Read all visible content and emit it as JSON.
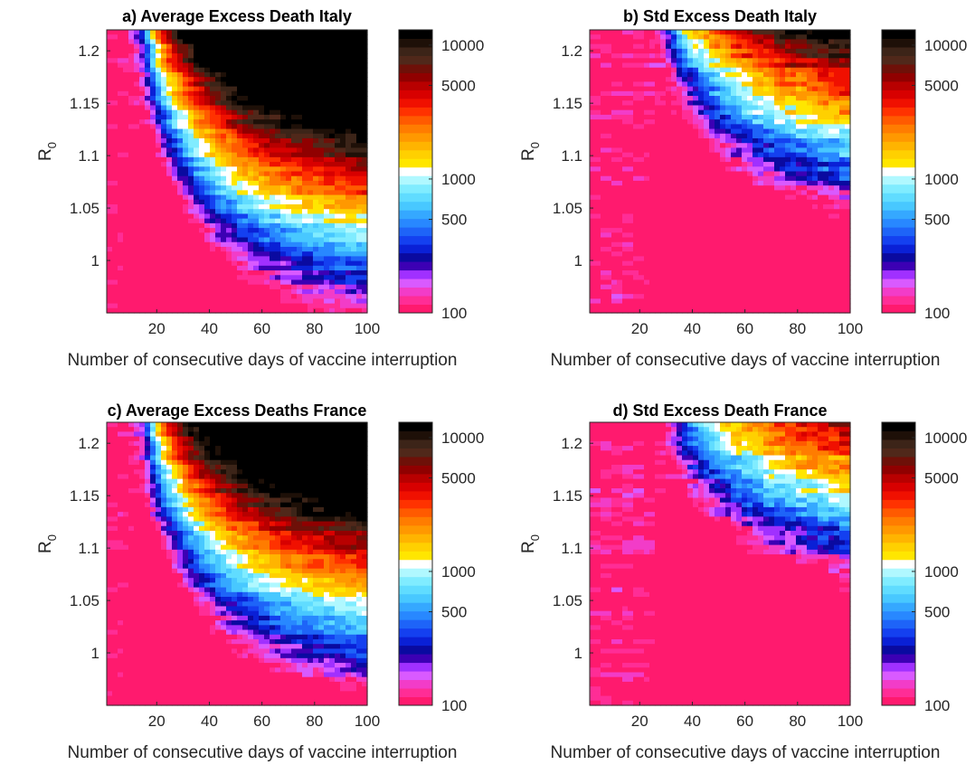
{
  "figure": {
    "colorbar": {
      "ticks": [
        {
          "value": 100,
          "label": "100"
        },
        {
          "value": 500,
          "label": "500"
        },
        {
          "value": 1000,
          "label": "1000"
        },
        {
          "value": 5000,
          "label": "5000"
        },
        {
          "value": 10000,
          "label": "10000"
        }
      ],
      "range": [
        100,
        13000
      ],
      "scale": "log",
      "colors": [
        "#ff1a6e",
        "#ff2d96",
        "#f23cc8",
        "#d95aff",
        "#a030ff",
        "#3c00b4",
        "#0a0aa0",
        "#0a20d6",
        "#1440f0",
        "#1e64f8",
        "#2888ff",
        "#35a8ff",
        "#48c8ff",
        "#60dcff",
        "#80ecff",
        "#b0f8ff",
        "#ffffff",
        "#ffe600",
        "#ffd000",
        "#ffb400",
        "#ff9800",
        "#ff7c00",
        "#ff5a00",
        "#ff3200",
        "#f01000",
        "#d80000",
        "#b80000",
        "#900000",
        "#6e1008",
        "#50281a",
        "#3c2418",
        "#1e1008",
        "#000000"
      ]
    }
  },
  "chart_data": [
    {
      "type": "heatmap",
      "title": "a) Average Excess Death Italy",
      "xlabel": "Number of consecutive days of vaccine interruption",
      "ylabel": "R",
      "ylabel_subscript": "0",
      "xlim": [
        1,
        100
      ],
      "ylim": [
        0.95,
        1.22
      ],
      "xticks": [
        20,
        40,
        60,
        80,
        100
      ],
      "yticks": [
        1,
        1.05,
        1.1,
        1.15,
        1.2
      ],
      "colorbar_range": [
        100,
        13000
      ],
      "surface": {
        "low": 100,
        "high": 13000,
        "threshold_start_x": 15,
        "threshold_steep": 22,
        "center_r": 1.04,
        "curvature": 0.0016,
        "offset_r": 0.005,
        "x_at_r_max": 100,
        "r_at_x_max": 1.045,
        "noise": 0.18
      }
    },
    {
      "type": "heatmap",
      "title": "b) Std Excess Death Italy",
      "xlabel": "Number of consecutive days of vaccine interruption",
      "ylabel": "R",
      "ylabel_subscript": "0",
      "xlim": [
        1,
        100
      ],
      "ylim": [
        0.95,
        1.22
      ],
      "xticks": [
        20,
        40,
        60,
        80,
        100
      ],
      "yticks": [
        1,
        1.05,
        1.1,
        1.15,
        1.2
      ],
      "colorbar_range": [
        100,
        13000
      ],
      "surface": {
        "low": 100,
        "high": 4500,
        "threshold_start_x": 30,
        "threshold_steep": 26,
        "center_r": 1.07,
        "curvature": 0.0012,
        "offset_r": 0.02,
        "x_at_r_max": 100,
        "r_at_x_max": 1.13,
        "noise": 0.25
      }
    },
    {
      "type": "heatmap",
      "title": "c) Average Excess Deaths France",
      "xlabel": "Number of consecutive days of vaccine interruption",
      "ylabel": "R",
      "ylabel_subscript": "0",
      "xlim": [
        1,
        100
      ],
      "ylim": [
        0.95,
        1.22
      ],
      "xticks": [
        20,
        40,
        60,
        80,
        100
      ],
      "yticks": [
        1,
        1.05,
        1.1,
        1.15,
        1.2
      ],
      "colorbar_range": [
        100,
        13000
      ],
      "surface": {
        "low": 100,
        "high": 13000,
        "threshold_start_x": 15,
        "threshold_steep": 22,
        "center_r": 1.05,
        "curvature": 0.0018,
        "offset_r": 0.0,
        "x_at_r_max": 100,
        "r_at_x_max": 1.06,
        "noise": 0.18
      }
    },
    {
      "type": "heatmap",
      "title": "d) Std Excess Death France",
      "xlabel": "Number of consecutive days of vaccine interruption",
      "ylabel": "R",
      "ylabel_subscript": "0",
      "xlim": [
        1,
        100
      ],
      "ylim": [
        0.95,
        1.22
      ],
      "xticks": [
        20,
        40,
        60,
        80,
        100
      ],
      "yticks": [
        1,
        1.05,
        1.1,
        1.15,
        1.2
      ],
      "colorbar_range": [
        100,
        13000
      ],
      "surface": {
        "low": 100,
        "high": 4500,
        "threshold_start_x": 32,
        "threshold_steep": 26,
        "center_r": 1.08,
        "curvature": 0.0012,
        "offset_r": 0.04,
        "x_at_r_max": 100,
        "r_at_x_max": 1.16,
        "noise": 0.25
      }
    }
  ]
}
